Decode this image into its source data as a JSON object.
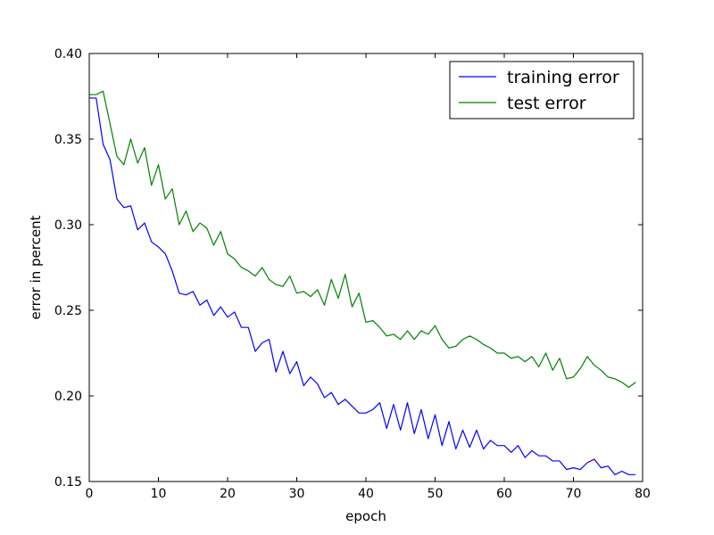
{
  "chart_data": {
    "type": "line",
    "title": "",
    "xlabel": "epoch",
    "ylabel": "error in percent",
    "xlim": [
      0,
      80
    ],
    "ylim": [
      0.15,
      0.4
    ],
    "xticks": [
      0,
      10,
      20,
      30,
      40,
      50,
      60,
      70,
      80
    ],
    "xtick_labels": [
      "0",
      "10",
      "20",
      "30",
      "40",
      "50",
      "60",
      "70",
      "80"
    ],
    "yticks": [
      0.15,
      0.2,
      0.25,
      0.3,
      0.35,
      0.4
    ],
    "ytick_labels": [
      "0.15",
      "0.20",
      "0.25",
      "0.30",
      "0.35",
      "0.40"
    ],
    "grid": false,
    "legend_position": "top-right",
    "x": [
      0,
      1,
      2,
      3,
      4,
      5,
      6,
      7,
      8,
      9,
      10,
      11,
      12,
      13,
      14,
      15,
      16,
      17,
      18,
      19,
      20,
      21,
      22,
      23,
      24,
      25,
      26,
      27,
      28,
      29,
      30,
      31,
      32,
      33,
      34,
      35,
      36,
      37,
      38,
      39,
      40,
      41,
      42,
      43,
      44,
      45,
      46,
      47,
      48,
      49,
      50,
      51,
      52,
      53,
      54,
      55,
      56,
      57,
      58,
      59,
      60,
      61,
      62,
      63,
      64,
      65,
      66,
      67,
      68,
      69,
      70,
      71,
      72,
      73,
      74,
      75,
      76,
      77,
      78,
      79
    ],
    "series": [
      {
        "name": "training error",
        "color": "#0000ff",
        "values": [
          0.374,
          0.374,
          0.347,
          0.338,
          0.315,
          0.31,
          0.311,
          0.297,
          0.301,
          0.29,
          0.287,
          0.283,
          0.273,
          0.26,
          0.259,
          0.261,
          0.253,
          0.256,
          0.247,
          0.252,
          0.246,
          0.249,
          0.24,
          0.24,
          0.226,
          0.231,
          0.233,
          0.214,
          0.226,
          0.213,
          0.22,
          0.206,
          0.211,
          0.207,
          0.199,
          0.202,
          0.195,
          0.198,
          0.194,
          0.19,
          0.19,
          0.192,
          0.196,
          0.181,
          0.195,
          0.18,
          0.196,
          0.178,
          0.192,
          0.175,
          0.189,
          0.171,
          0.185,
          0.169,
          0.18,
          0.17,
          0.18,
          0.169,
          0.174,
          0.171,
          0.171,
          0.167,
          0.171,
          0.164,
          0.168,
          0.165,
          0.165,
          0.162,
          0.162,
          0.157,
          0.158,
          0.157,
          0.161,
          0.163,
          0.158,
          0.159,
          0.154,
          0.156,
          0.154,
          0.154
        ]
      },
      {
        "name": "test error",
        "color": "#008000",
        "values": [
          0.376,
          0.376,
          0.378,
          0.359,
          0.34,
          0.335,
          0.35,
          0.336,
          0.345,
          0.323,
          0.335,
          0.315,
          0.321,
          0.3,
          0.308,
          0.296,
          0.301,
          0.298,
          0.288,
          0.296,
          0.283,
          0.28,
          0.275,
          0.273,
          0.27,
          0.275,
          0.268,
          0.265,
          0.264,
          0.27,
          0.26,
          0.261,
          0.258,
          0.262,
          0.253,
          0.268,
          0.257,
          0.271,
          0.252,
          0.26,
          0.243,
          0.244,
          0.24,
          0.235,
          0.236,
          0.233,
          0.238,
          0.233,
          0.238,
          0.236,
          0.241,
          0.233,
          0.228,
          0.229,
          0.233,
          0.235,
          0.233,
          0.23,
          0.228,
          0.225,
          0.225,
          0.222,
          0.223,
          0.22,
          0.223,
          0.217,
          0.225,
          0.215,
          0.222,
          0.21,
          0.211,
          0.216,
          0.223,
          0.218,
          0.215,
          0.211,
          0.21,
          0.208,
          0.205,
          0.208
        ]
      }
    ]
  }
}
